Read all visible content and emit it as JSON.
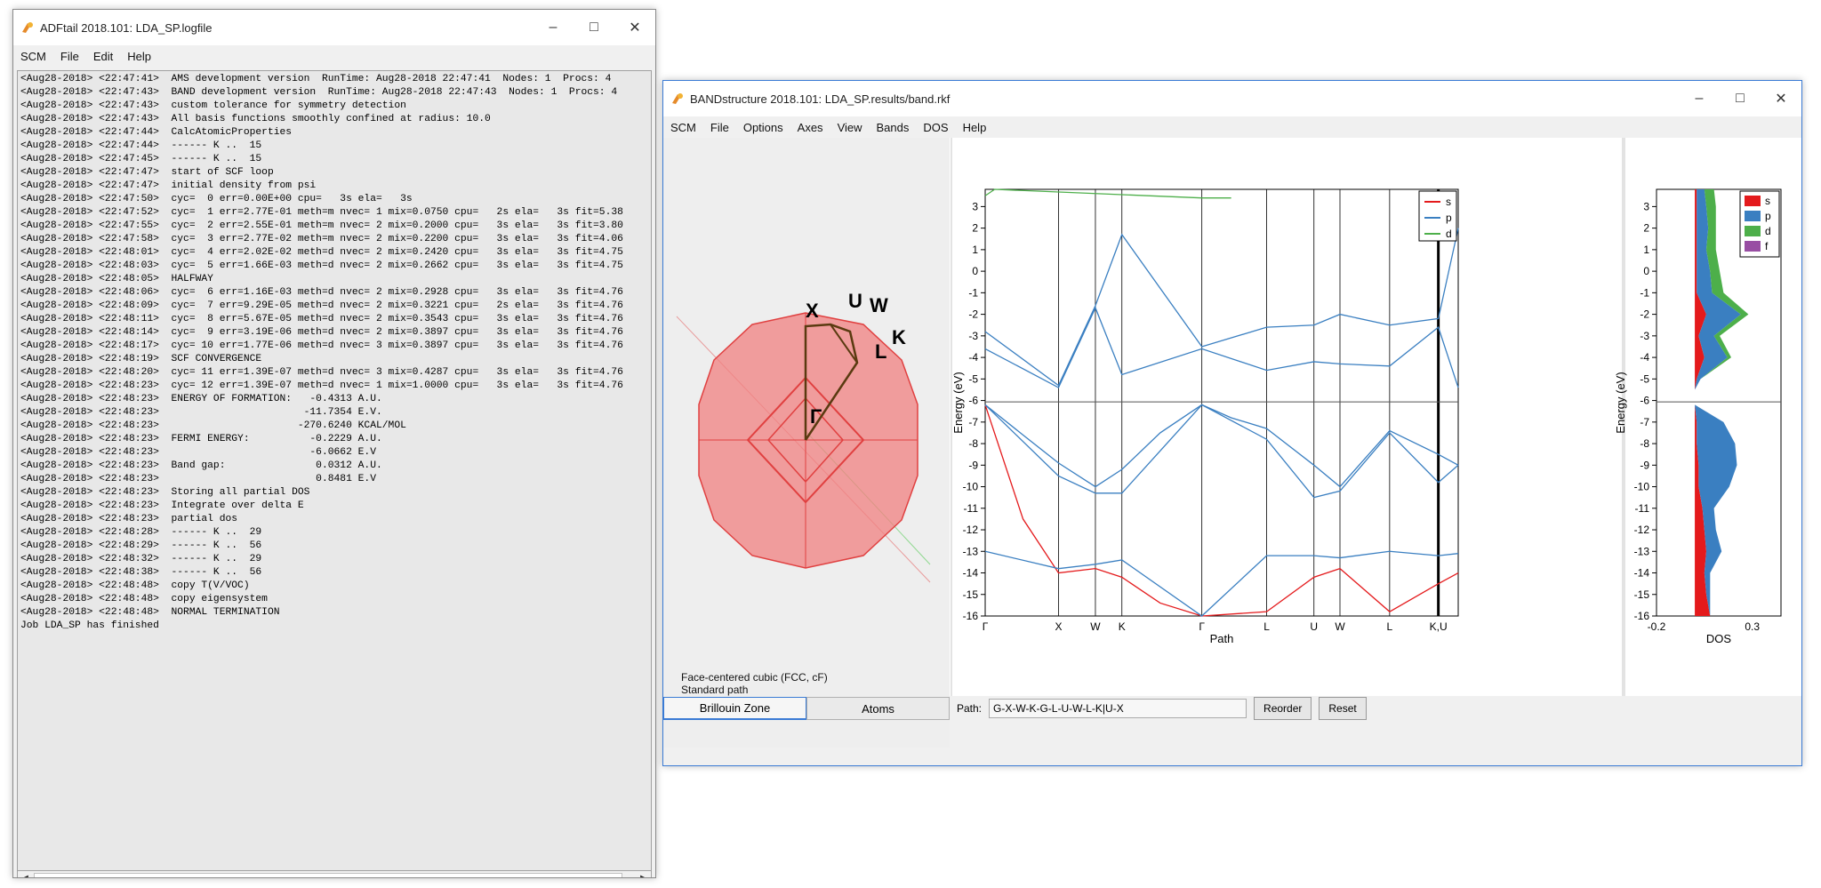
{
  "logwin": {
    "title": "ADFtail 2018.101: LDA_SP.logfile",
    "menu": [
      "SCM",
      "File",
      "Edit",
      "Help"
    ],
    "lines": [
      "<Aug28-2018> <22:47:41>  AMS development version  RunTime: Aug28-2018 22:47:41  Nodes: 1  Procs: 4",
      "<Aug28-2018> <22:47:43>  BAND development version  RunTime: Aug28-2018 22:47:43  Nodes: 1  Procs: 4",
      "<Aug28-2018> <22:47:43>  custom tolerance for symmetry detection",
      "<Aug28-2018> <22:47:43>  All basis functions smoothly confined at radius: 10.0",
      "<Aug28-2018> <22:47:44>  CalcAtomicProperties",
      "<Aug28-2018> <22:47:44>  ------ K ..  15",
      "<Aug28-2018> <22:47:45>  ------ K ..  15",
      "<Aug28-2018> <22:47:47>  start of SCF loop",
      "<Aug28-2018> <22:47:47>  initial density from psi",
      "<Aug28-2018> <22:47:50>  cyc=  0 err=0.00E+00 cpu=   3s ela=   3s",
      "<Aug28-2018> <22:47:52>  cyc=  1 err=2.77E-01 meth=m nvec= 1 mix=0.0750 cpu=   2s ela=   3s fit=5.38",
      "<Aug28-2018> <22:47:55>  cyc=  2 err=2.55E-01 meth=m nvec= 2 mix=0.2000 cpu=   3s ela=   3s fit=3.80",
      "<Aug28-2018> <22:47:58>  cyc=  3 err=2.77E-02 meth=m nvec= 2 mix=0.2200 cpu=   3s ela=   3s fit=4.06",
      "<Aug28-2018> <22:48:01>  cyc=  4 err=2.02E-02 meth=d nvec= 2 mix=0.2420 cpu=   3s ela=   3s fit=4.75",
      "<Aug28-2018> <22:48:03>  cyc=  5 err=1.66E-03 meth=d nvec= 2 mix=0.2662 cpu=   3s ela=   3s fit=4.75",
      "<Aug28-2018> <22:48:05>  HALFWAY",
      "<Aug28-2018> <22:48:06>  cyc=  6 err=1.16E-03 meth=d nvec= 2 mix=0.2928 cpu=   3s ela=   3s fit=4.76",
      "<Aug28-2018> <22:48:09>  cyc=  7 err=9.29E-05 meth=d nvec= 2 mix=0.3221 cpu=   2s ela=   3s fit=4.76",
      "<Aug28-2018> <22:48:11>  cyc=  8 err=5.67E-05 meth=d nvec= 2 mix=0.3543 cpu=   3s ela=   3s fit=4.76",
      "<Aug28-2018> <22:48:14>  cyc=  9 err=3.19E-06 meth=d nvec= 2 mix=0.3897 cpu=   3s ela=   3s fit=4.76",
      "<Aug28-2018> <22:48:17>  cyc= 10 err=1.77E-06 meth=d nvec= 3 mix=0.3897 cpu=   3s ela=   3s fit=4.76",
      "<Aug28-2018> <22:48:19>  SCF CONVERGENCE",
      "<Aug28-2018> <22:48:20>  cyc= 11 err=1.39E-07 meth=d nvec= 3 mix=0.4287 cpu=   3s ela=   3s fit=4.76",
      "<Aug28-2018> <22:48:23>  cyc= 12 err=1.39E-07 meth=d nvec= 1 mix=1.0000 cpu=   3s ela=   3s fit=4.76",
      "<Aug28-2018> <22:48:23>  ENERGY OF FORMATION:   -0.4313 A.U.",
      "<Aug28-2018> <22:48:23>                        -11.7354 E.V.",
      "<Aug28-2018> <22:48:23>                       -270.6240 KCAL/MOL",
      "<Aug28-2018> <22:48:23>  FERMI ENERGY:          -0.2229 A.U.",
      "<Aug28-2018> <22:48:23>                         -6.0662 E.V",
      "<Aug28-2018> <22:48:23>  Band gap:               0.0312 A.U.",
      "<Aug28-2018> <22:48:23>                          0.8481 E.V",
      "<Aug28-2018> <22:48:23>  Storing all partial DOS",
      "<Aug28-2018> <22:48:23>  Integrate over delta E",
      "<Aug28-2018> <22:48:23>  partial dos",
      "<Aug28-2018> <22:48:28>  ------ K ..  29",
      "<Aug28-2018> <22:48:29>  ------ K ..  56",
      "<Aug28-2018> <22:48:32>  ------ K ..  29",
      "<Aug28-2018> <22:48:38>  ------ K ..  56",
      "<Aug28-2018> <22:48:48>  copy T(V/VOC)",
      "<Aug28-2018> <22:48:48>  copy eigensystem",
      "<Aug28-2018> <22:48:48>  NORMAL TERMINATION",
      "Job LDA_SP has finished"
    ]
  },
  "bandwin": {
    "title": "BANDstructure 2018.101: LDA_SP.results/band.rkf",
    "menu": [
      "SCM",
      "File",
      "Options",
      "Axes",
      "View",
      "Bands",
      "DOS",
      "Help"
    ],
    "bz": {
      "labels": {
        "X": "X",
        "U": "U",
        "W": "W",
        "K": "K",
        "L": "L",
        "G": "Γ"
      },
      "caption1": "Face-centered cubic (FCC, cF)",
      "caption2": "Standard path"
    },
    "tabs": [
      "Brillouin Zone",
      "Atoms"
    ],
    "path_label": "Path:",
    "path_value": "G-X-W-K-G-L-U-W-L-K|U-X",
    "reorder": "Reorder",
    "reset": "Reset"
  },
  "chart_data": [
    {
      "type": "line",
      "ylabel": "Energy (eV)",
      "xlabel": "Path",
      "ylim": [
        -16,
        3.8
      ],
      "yticks": [
        -16,
        -15,
        -14,
        -13,
        -12,
        -11,
        -10,
        -9,
        -8,
        -7,
        -6,
        -5,
        -4,
        -3,
        -2,
        -1,
        0,
        1,
        2,
        3
      ],
      "fermi_energy": -6.0662,
      "xticks": [
        "Γ",
        "X",
        "W",
        "K",
        "Γ",
        "L",
        "U",
        "W",
        "L",
        "K,U"
      ],
      "xtick_positions": [
        0,
        0.155,
        0.233,
        0.289,
        0.458,
        0.595,
        0.695,
        0.75,
        0.855,
        0.958
      ],
      "legend": [
        "s",
        "p",
        "d"
      ],
      "legend_position": "top-right",
      "series_colors": {
        "s": "#e41a1c",
        "p": "#3a7fc1",
        "d": "#4daf4a"
      },
      "series": [
        {
          "name": "s",
          "x": [
            0.0,
            0.08,
            0.155,
            0.233,
            0.289,
            0.37,
            0.458,
            0.595,
            0.695,
            0.75,
            0.855,
            0.958,
            1.0
          ],
          "values": [
            -6.2,
            -11.5,
            -14.0,
            -13.8,
            -14.2,
            -15.4,
            -16.8,
            -15.8,
            -14.2,
            -13.8,
            -15.8,
            -14.5,
            -14.0
          ]
        },
        {
          "name": "p",
          "x": [
            0.0,
            0.08,
            0.155,
            0.233,
            0.289,
            0.37,
            0.458,
            0.52,
            0.595,
            0.695,
            0.75,
            0.855,
            0.958,
            1.0
          ],
          "values": [
            -6.2,
            -7.6,
            -8.9,
            -10.0,
            -9.2,
            -7.5,
            -6.2,
            -6.8,
            -7.3,
            -9.0,
            -10.0,
            -7.4,
            -8.5,
            -9.0
          ]
        },
        {
          "name": "p",
          "x": [
            0.0,
            0.155,
            0.233,
            0.289,
            0.458,
            0.595,
            0.695,
            0.75,
            0.855,
            0.958,
            1.0
          ],
          "values": [
            -6.2,
            -9.5,
            -10.3,
            -10.3,
            -6.2,
            -7.8,
            -10.5,
            -10.2,
            -7.5,
            -9.8,
            -9.0
          ]
        },
        {
          "name": "p",
          "x": [
            0.0,
            0.155,
            0.233,
            0.289,
            0.458,
            0.595,
            0.695,
            0.75,
            0.855,
            0.958,
            1.0
          ],
          "values": [
            -3.6,
            -5.4,
            -1.7,
            -4.8,
            -3.6,
            -4.6,
            -4.2,
            -4.3,
            -4.4,
            -2.6,
            -5.4
          ]
        },
        {
          "name": "p",
          "x": [
            0.0,
            0.155,
            0.233,
            0.289,
            0.458,
            0.595,
            0.695,
            0.75,
            0.855,
            0.958,
            1.0
          ],
          "values": [
            -2.8,
            -5.3,
            -1.6,
            1.7,
            -3.5,
            -2.6,
            -2.5,
            -2.0,
            -2.5,
            -2.2,
            2.0
          ]
        },
        {
          "name": "d",
          "x": [
            0.0,
            0.02,
            0.458,
            0.52
          ],
          "values": [
            3.5,
            3.8,
            3.4,
            3.4
          ]
        },
        {
          "name": "p",
          "x": [
            0.0,
            0.155,
            0.233,
            0.289,
            0.458,
            0.595,
            0.695,
            0.75,
            0.855,
            0.958,
            1.0
          ],
          "values": [
            -13.0,
            -13.8,
            -13.6,
            -13.4,
            -16.5,
            -13.2,
            -13.2,
            -13.3,
            -13.0,
            -13.2,
            -13.1
          ]
        }
      ]
    },
    {
      "type": "area",
      "ylabel": "Energy (eV)",
      "xlabel": "DOS",
      "xticks": [
        -0.2,
        0.3
      ],
      "ylim": [
        -16,
        3.8
      ],
      "yticks": [
        -16,
        -15,
        -14,
        -13,
        -12,
        -11,
        -10,
        -9,
        -8,
        -7,
        -6,
        -5,
        -4,
        -3,
        -2,
        -1,
        0,
        1,
        2,
        3
      ],
      "legend": [
        "s",
        "p",
        "d",
        "f"
      ],
      "legend_position": "top-right",
      "series_colors": {
        "s": "#e41a1c",
        "p": "#3a7fc1",
        "d": "#4daf4a",
        "f": "#984ea3"
      },
      "energies": [
        -16,
        -15,
        -14,
        -13,
        -12,
        -11,
        -10,
        -9,
        -8,
        -7,
        -6.2,
        -5.5,
        -5,
        -4,
        -3,
        -2,
        -1,
        0,
        1,
        2,
        3,
        3.8
      ],
      "series": [
        {
          "name": "s",
          "values": [
            0.08,
            0.06,
            0.05,
            0.06,
            0.05,
            0.04,
            0.02,
            0.02,
            0.01,
            0.01,
            0.0,
            0.0,
            0.01,
            0.05,
            0.02,
            0.06,
            0.01,
            0.01,
            0.01,
            0.01,
            0.01,
            0.01
          ]
        },
        {
          "name": "p",
          "values": [
            0.0,
            0.02,
            0.03,
            0.08,
            0.06,
            0.06,
            0.16,
            0.2,
            0.2,
            0.14,
            0.0,
            0.0,
            0.02,
            0.12,
            0.08,
            0.18,
            0.08,
            0.07,
            0.05,
            0.06,
            0.05,
            0.04
          ]
        },
        {
          "name": "d",
          "values": [
            0.0,
            0.0,
            0.0,
            0.0,
            0.0,
            0.0,
            0.0,
            0.0,
            0.0,
            0.0,
            0.0,
            0.0,
            0.0,
            0.02,
            0.03,
            0.04,
            0.06,
            0.05,
            0.05,
            0.04,
            0.05,
            0.05
          ]
        },
        {
          "name": "f",
          "values": [
            0.0,
            0.0,
            0.0,
            0.0,
            0.0,
            0.0,
            0.0,
            0.0,
            0.0,
            0.0,
            0.0,
            0.0,
            0.0,
            0.0,
            0.0,
            0.0,
            0.0,
            0.0,
            0.0,
            0.0,
            0.0,
            0.0
          ]
        }
      ]
    }
  ]
}
